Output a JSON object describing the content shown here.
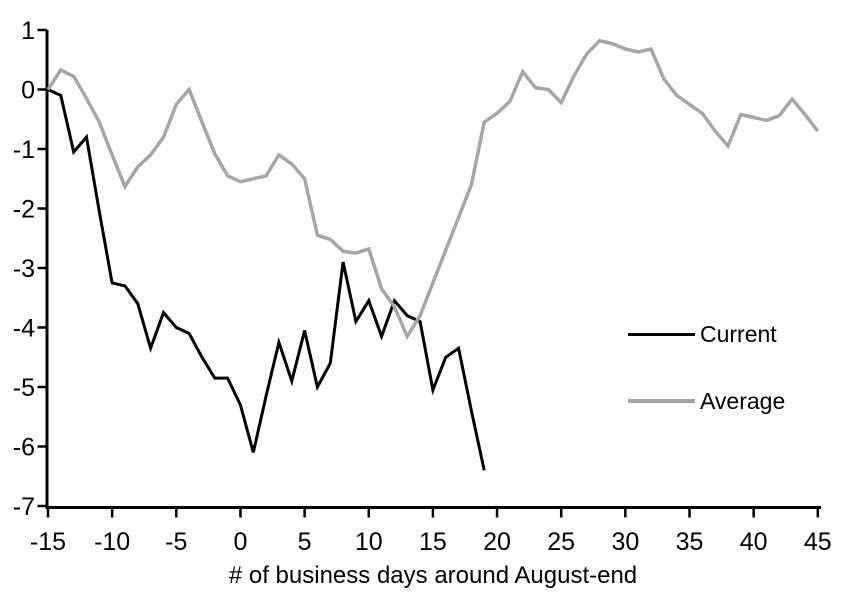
{
  "chart_data": {
    "type": "line",
    "title": "",
    "xlabel": "# of business days around August-end",
    "ylabel": "",
    "xlim": [
      -15,
      45
    ],
    "ylim": [
      -7,
      1
    ],
    "x_ticks": [
      -15,
      -10,
      -5,
      0,
      5,
      10,
      15,
      20,
      25,
      30,
      35,
      40,
      45
    ],
    "y_ticks": [
      1,
      0,
      -1,
      -2,
      -3,
      -4,
      -5,
      -6,
      -7
    ],
    "grid": false,
    "legend_position": "right-middle",
    "axis_color": "#000000",
    "background_color": "#ffffff",
    "series": [
      {
        "name": "Current",
        "color": "#000000",
        "line_width": 3,
        "x": [
          -15,
          -14,
          -13,
          -12,
          -11,
          -10,
          -9,
          -8,
          -7,
          -6,
          -5,
          -4,
          -3,
          -2,
          -1,
          0,
          1,
          2,
          3,
          4,
          5,
          6,
          7,
          8,
          9,
          10,
          11,
          12,
          13,
          14,
          15,
          16,
          17,
          18,
          19
        ],
        "values": [
          0,
          -0.1,
          -1.05,
          -0.8,
          -2.05,
          -3.25,
          -3.3,
          -3.6,
          -4.35,
          -3.75,
          -4.0,
          -4.1,
          -4.5,
          -4.85,
          -4.85,
          -5.3,
          -6.1,
          -5.15,
          -4.25,
          -4.9,
          -4.05,
          -5.0,
          -4.6,
          -2.9,
          -3.9,
          -3.55,
          -4.15,
          -3.55,
          -3.8,
          -3.9,
          -5.05,
          -4.5,
          -4.35,
          -5.4,
          -6.4
        ]
      },
      {
        "name": "Average",
        "color": "#A6A6A6",
        "line_width": 3.5,
        "x": [
          -15,
          -14,
          -13,
          -12,
          -11,
          -10,
          -9,
          -8,
          -7,
          -6,
          -5,
          -4,
          -3,
          -2,
          -1,
          0,
          1,
          2,
          3,
          4,
          5,
          6,
          7,
          8,
          9,
          10,
          11,
          12,
          13,
          14,
          15,
          16,
          17,
          18,
          19,
          20,
          21,
          22,
          23,
          24,
          25,
          26,
          27,
          28,
          29,
          30,
          31,
          32,
          33,
          34,
          35,
          36,
          37,
          38,
          39,
          40,
          41,
          42,
          43,
          44,
          45
        ],
        "values": [
          0,
          0.33,
          0.22,
          -0.15,
          -0.55,
          -1.1,
          -1.63,
          -1.3,
          -1.1,
          -0.8,
          -0.25,
          0,
          -0.55,
          -1.08,
          -1.45,
          -1.55,
          -1.5,
          -1.45,
          -1.1,
          -1.25,
          -1.5,
          -2.45,
          -2.52,
          -2.72,
          -2.75,
          -2.68,
          -3.35,
          -3.65,
          -4.15,
          -3.8,
          -3.25,
          -2.7,
          -2.15,
          -1.6,
          -0.55,
          -0.4,
          -0.2,
          0.3,
          0.03,
          0,
          -0.22,
          0.23,
          0.6,
          0.82,
          0.77,
          0.68,
          0.63,
          0.68,
          0.18,
          -0.1,
          -0.25,
          -0.4,
          -0.7,
          -0.95,
          -0.42,
          -0.47,
          -0.52,
          -0.44,
          -0.16,
          -0.42,
          -0.7
        ]
      }
    ]
  }
}
